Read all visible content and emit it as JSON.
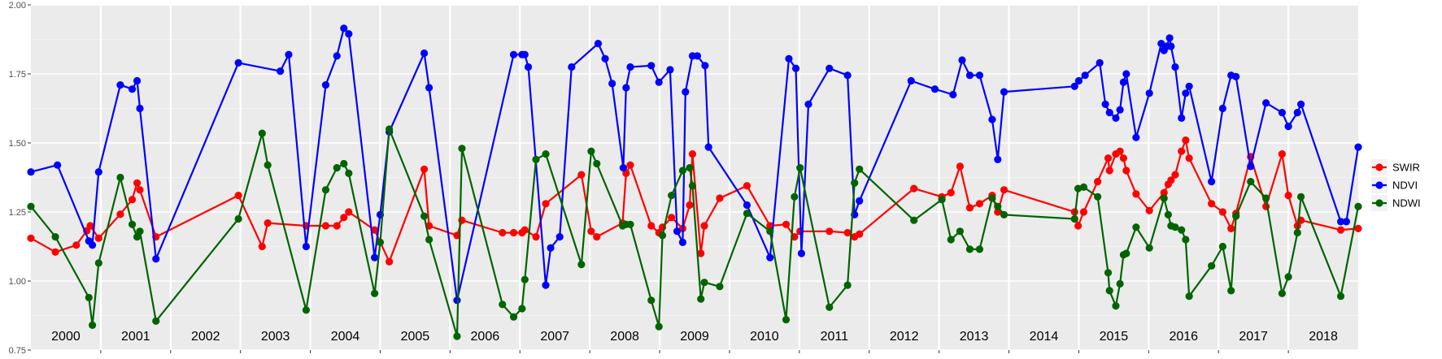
{
  "chart_data": {
    "type": "line",
    "title": "",
    "xlabel": "",
    "ylabel": "",
    "ylim": [
      0.75,
      2.0
    ],
    "xlim": [
      2000.0,
      2019.0
    ],
    "y_ticks": [
      "0.75",
      "1.00",
      "1.25",
      "1.50",
      "1.75",
      "2.00"
    ],
    "year_labels": [
      "2000",
      "2001",
      "2002",
      "2003",
      "2004",
      "2005",
      "2006",
      "2007",
      "2008",
      "2009",
      "2010",
      "2011",
      "2012",
      "2013",
      "2014",
      "2015",
      "2016",
      "2017",
      "2018"
    ],
    "grid": true,
    "legend_position": "right",
    "series": [
      {
        "name": "SWIR",
        "color": "#ff0000",
        "x": [
          2000.0,
          2000.35,
          2000.65,
          2000.8,
          2000.85,
          2000.97,
          2001.28,
          2001.45,
          2001.52,
          2001.56,
          2001.79,
          2002.97,
          2003.31,
          2003.39,
          2003.94,
          2004.22,
          2004.38,
          2004.48,
          2004.55,
          2004.92,
          2005.13,
          2005.63,
          2005.7,
          2006.1,
          2006.17,
          2006.75,
          2006.91,
          2007.03,
          2007.07,
          2007.23,
          2007.37,
          2007.88,
          2008.02,
          2008.1,
          2008.47,
          2008.52,
          2008.58,
          2008.88,
          2008.99,
          2009.04,
          2009.17,
          2009.33,
          2009.43,
          2009.47,
          2009.59,
          2009.64,
          2009.86,
          2010.25,
          2010.58,
          2010.81,
          2010.93,
          2011.01,
          2011.43,
          2011.69,
          2011.79,
          2011.86,
          2012.64,
          2013.04,
          2013.17,
          2013.3,
          2013.44,
          2013.58,
          2013.76,
          2013.84,
          2013.93,
          2014.94,
          2014.99,
          2015.07,
          2015.27,
          2015.42,
          2015.44,
          2015.53,
          2015.59,
          2015.64,
          2015.68,
          2015.82,
          2016.01,
          2016.22,
          2016.28,
          2016.32,
          2016.38,
          2016.47,
          2016.53,
          2016.58,
          2016.9,
          2017.06,
          2017.18,
          2017.25,
          2017.46,
          2017.68,
          2017.91,
          2018.0,
          2018.13,
          2018.18,
          2018.75,
          2019.0
        ],
        "y": [
          1.155,
          1.105,
          1.13,
          1.182,
          1.2,
          1.155,
          1.242,
          1.295,
          1.355,
          1.33,
          1.16,
          1.31,
          1.125,
          1.21,
          1.2,
          1.2,
          1.2,
          1.23,
          1.25,
          1.185,
          1.07,
          1.405,
          1.2,
          1.165,
          1.22,
          1.175,
          1.175,
          1.175,
          1.185,
          1.16,
          1.28,
          1.385,
          1.18,
          1.16,
          1.21,
          1.39,
          1.42,
          1.2,
          1.175,
          1.195,
          1.23,
          1.19,
          1.275,
          1.46,
          1.1,
          1.2,
          1.3,
          1.345,
          1.2,
          1.205,
          1.16,
          1.18,
          1.18,
          1.175,
          1.16,
          1.17,
          1.335,
          1.305,
          1.32,
          1.415,
          1.265,
          1.28,
          1.31,
          1.25,
          1.33,
          1.25,
          1.2,
          1.25,
          1.36,
          1.445,
          1.4,
          1.46,
          1.47,
          1.445,
          1.4,
          1.315,
          1.255,
          1.32,
          1.35,
          1.365,
          1.385,
          1.47,
          1.51,
          1.445,
          1.28,
          1.25,
          1.19,
          1.245,
          1.45,
          1.27,
          1.46,
          1.31,
          1.2,
          1.22,
          1.185,
          1.19
        ]
      },
      {
        "name": "NDVI",
        "color": "#0000ff",
        "x": [
          2000.0,
          2000.38,
          2000.83,
          2000.88,
          2000.97,
          2001.28,
          2001.45,
          2001.52,
          2001.56,
          2001.79,
          2002.97,
          2003.57,
          2003.69,
          2003.94,
          2004.22,
          2004.38,
          2004.48,
          2004.55,
          2004.92,
          2005.0,
          2005.13,
          2005.63,
          2005.7,
          2006.1,
          2006.91,
          2007.03,
          2007.07,
          2007.12,
          2007.37,
          2007.44,
          2007.57,
          2007.74,
          2008.12,
          2008.22,
          2008.32,
          2008.48,
          2008.52,
          2008.58,
          2008.88,
          2008.99,
          2009.15,
          2009.25,
          2009.33,
          2009.37,
          2009.47,
          2009.54,
          2009.65,
          2009.7,
          2010.25,
          2010.58,
          2010.85,
          2010.95,
          2011.03,
          2011.13,
          2011.43,
          2011.69,
          2011.79,
          2011.86,
          2012.6,
          2012.94,
          2013.2,
          2013.33,
          2013.44,
          2013.58,
          2013.76,
          2013.84,
          2013.93,
          2014.94,
          2015.0,
          2015.09,
          2015.3,
          2015.38,
          2015.44,
          2015.53,
          2015.59,
          2015.64,
          2015.68,
          2015.82,
          2016.01,
          2016.18,
          2016.22,
          2016.26,
          2016.3,
          2016.32,
          2016.38,
          2016.47,
          2016.53,
          2016.58,
          2016.9,
          2017.06,
          2017.18,
          2017.25,
          2017.46,
          2017.68,
          2017.91,
          2018.0,
          2018.13,
          2018.18,
          2018.75,
          2018.83,
          2019.0
        ],
        "y": [
          1.395,
          1.42,
          1.145,
          1.13,
          1.395,
          1.71,
          1.695,
          1.725,
          1.625,
          1.08,
          1.79,
          1.76,
          1.82,
          1.125,
          1.71,
          1.815,
          1.915,
          1.895,
          1.085,
          1.24,
          1.54,
          1.825,
          1.7,
          0.93,
          1.82,
          1.82,
          1.82,
          1.775,
          0.985,
          1.12,
          1.16,
          1.775,
          1.86,
          1.805,
          1.715,
          1.41,
          1.7,
          1.775,
          1.78,
          1.72,
          1.765,
          1.18,
          1.14,
          1.685,
          1.815,
          1.815,
          1.78,
          1.485,
          1.275,
          1.085,
          1.805,
          1.77,
          1.1,
          1.64,
          1.77,
          1.745,
          1.24,
          1.29,
          1.725,
          1.695,
          1.675,
          1.8,
          1.745,
          1.745,
          1.585,
          1.44,
          1.685,
          1.705,
          1.725,
          1.745,
          1.79,
          1.64,
          1.61,
          1.59,
          1.62,
          1.72,
          1.75,
          1.52,
          1.68,
          1.86,
          1.835,
          1.85,
          1.88,
          1.85,
          1.775,
          1.59,
          1.68,
          1.705,
          1.36,
          1.625,
          1.745,
          1.74,
          1.415,
          1.645,
          1.61,
          1.56,
          1.61,
          1.64,
          1.215,
          1.215,
          1.485
        ]
      },
      {
        "name": "NDWI",
        "color": "#006400",
        "x": [
          2000.0,
          2000.35,
          2000.83,
          2000.88,
          2000.97,
          2001.28,
          2001.45,
          2001.52,
          2001.56,
          2001.79,
          2002.97,
          2003.31,
          2003.39,
          2003.94,
          2004.22,
          2004.38,
          2004.48,
          2004.55,
          2004.92,
          2005.0,
          2005.13,
          2005.63,
          2005.7,
          2006.1,
          2006.17,
          2006.75,
          2006.91,
          2007.03,
          2007.07,
          2007.23,
          2007.37,
          2007.88,
          2008.02,
          2008.1,
          2008.47,
          2008.52,
          2008.58,
          2008.88,
          2008.99,
          2009.04,
          2009.17,
          2009.33,
          2009.43,
          2009.47,
          2009.59,
          2009.64,
          2009.86,
          2010.25,
          2010.58,
          2010.81,
          2010.93,
          2011.01,
          2011.43,
          2011.69,
          2011.79,
          2011.86,
          2012.64,
          2013.04,
          2013.17,
          2013.3,
          2013.44,
          2013.58,
          2013.76,
          2013.84,
          2013.93,
          2014.94,
          2014.99,
          2015.07,
          2015.27,
          2015.42,
          2015.44,
          2015.53,
          2015.59,
          2015.64,
          2015.68,
          2015.82,
          2016.01,
          2016.22,
          2016.28,
          2016.32,
          2016.38,
          2016.47,
          2016.53,
          2016.58,
          2016.9,
          2017.06,
          2017.18,
          2017.25,
          2017.46,
          2017.68,
          2017.91,
          2018.0,
          2018.13,
          2018.18,
          2018.75,
          2019.0
        ],
        "y": [
          1.27,
          1.16,
          0.94,
          0.84,
          1.065,
          1.375,
          1.205,
          1.16,
          1.18,
          0.855,
          1.225,
          1.535,
          1.42,
          0.895,
          1.33,
          1.41,
          1.425,
          1.39,
          0.955,
          1.14,
          1.55,
          1.235,
          1.15,
          0.8,
          1.48,
          0.915,
          0.87,
          0.9,
          1.005,
          1.44,
          1.46,
          1.06,
          1.47,
          1.425,
          1.2,
          1.205,
          1.205,
          0.93,
          0.835,
          1.165,
          1.31,
          1.4,
          1.41,
          1.345,
          0.935,
          0.995,
          0.98,
          1.245,
          1.18,
          0.86,
          1.305,
          1.41,
          0.905,
          0.985,
          1.355,
          1.405,
          1.22,
          1.295,
          1.15,
          1.18,
          1.115,
          1.115,
          1.3,
          1.27,
          1.24,
          1.225,
          1.335,
          1.34,
          1.305,
          1.03,
          0.965,
          0.91,
          0.99,
          1.095,
          1.1,
          1.195,
          1.12,
          1.3,
          1.24,
          1.2,
          1.195,
          1.185,
          1.15,
          0.945,
          1.055,
          1.125,
          0.965,
          1.235,
          1.36,
          1.3,
          0.955,
          1.015,
          1.175,
          1.305,
          0.945,
          1.27
        ]
      }
    ]
  }
}
